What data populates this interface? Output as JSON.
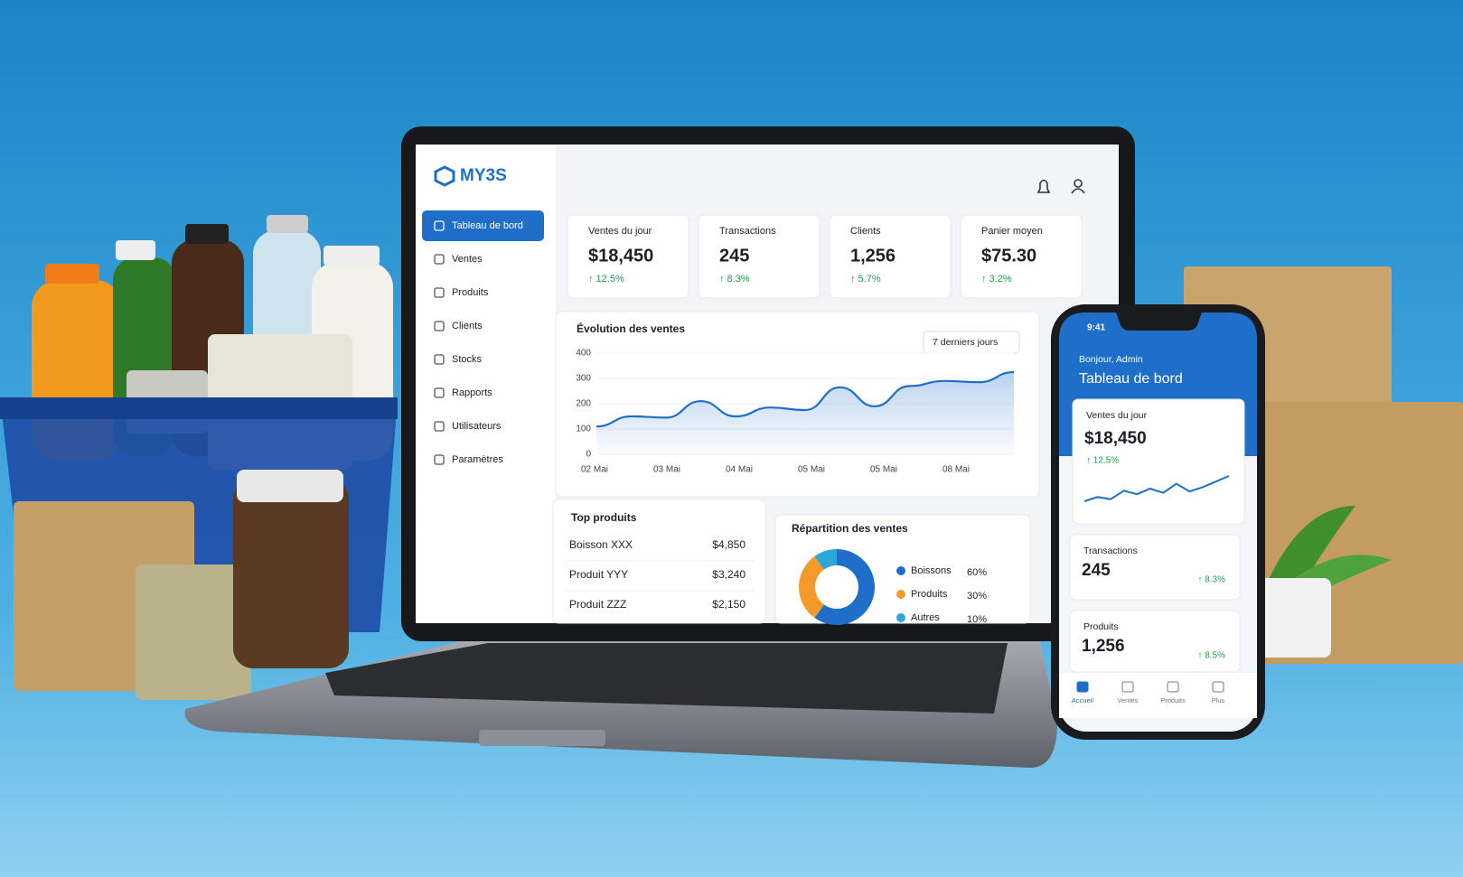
{
  "laptop": {
    "logo": "MY3S",
    "nav": [
      "Tableau de bord",
      "Ventes",
      "Produits",
      "Clients",
      "Stocks",
      "Rapports",
      "Utilisateurs",
      "Paramètres"
    ],
    "kpis": [
      {
        "label": "Ventes du jour",
        "value": "$18,450",
        "change": "↑ 12.5%"
      },
      {
        "label": "Transactions",
        "value": "245",
        "change": "↑ 8.3%"
      },
      {
        "label": "Clients",
        "value": "1,256",
        "change": "↑ 5.7%"
      },
      {
        "label": "Panier moyen",
        "value": "$75.30",
        "change": "↑ 3.2%"
      }
    ],
    "sales_chart": {
      "title": "Évolution des ventes",
      "period": "7 derniers jours",
      "ylim": [
        0,
        400
      ],
      "yticks": [
        0,
        100,
        200,
        300,
        400
      ],
      "x_labels": [
        "02 Mai",
        "03 Mai",
        "04 Mai",
        "05 Mai",
        "05 Mai",
        "08 Mai"
      ],
      "values": [
        110,
        150,
        145,
        210,
        150,
        185,
        175,
        265,
        190,
        270,
        290,
        285,
        325
      ],
      "color": "#1f6fc8"
    },
    "top_products": {
      "title": "Top produits",
      "rows": [
        [
          "Boisson XXX",
          "$4,850"
        ],
        [
          "Produit YYY",
          "$3,240"
        ],
        [
          "Produit ZZZ",
          "$2,150"
        ]
      ]
    },
    "distribution": {
      "title": "Répartition des ventes",
      "items": [
        {
          "name": "Boissons",
          "value": 60,
          "label": "60%",
          "color": "#1f6fc8"
        },
        {
          "name": "Produits",
          "value": 30,
          "label": "30%",
          "color": "#f39a2b"
        },
        {
          "name": "Autres",
          "value": 10,
          "label": "10%",
          "color": "#2aa8d6"
        }
      ]
    }
  },
  "phone": {
    "time": "9:41",
    "greeting": "Bonjour, Admin",
    "title": "Tableau de bord",
    "cards": [
      {
        "label": "Ventes du jour",
        "value": "$18,450",
        "change": "↑ 12.5%"
      },
      {
        "label": "Transactions",
        "value": "245",
        "change": "↑ 8.3%"
      },
      {
        "label": "Produits",
        "value": "1,256",
        "change": "↑ 8.5%"
      }
    ],
    "sparkline": [
      30,
      36,
      33,
      45,
      40,
      48,
      42,
      55,
      44,
      50,
      58,
      66
    ],
    "tabs": [
      "Accueil",
      "Ventes",
      "Produits",
      "Plus"
    ]
  }
}
